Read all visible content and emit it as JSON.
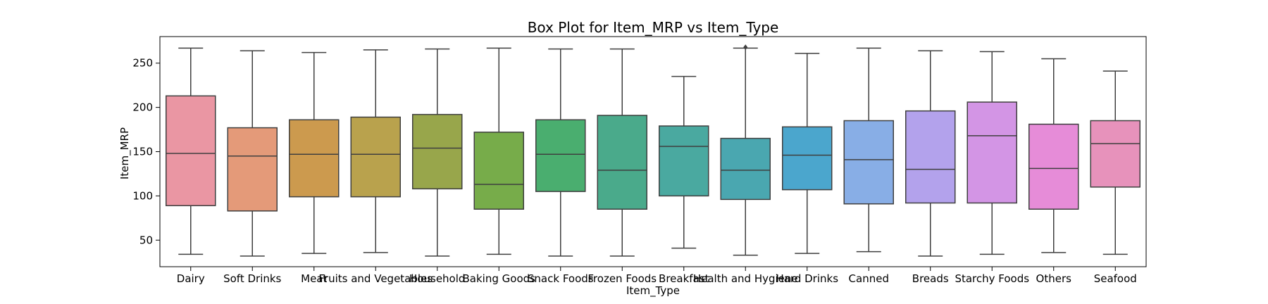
{
  "chart_data": {
    "type": "box",
    "title": "Box Plot for Item_MRP vs Item_Type",
    "xlabel": "Item_Type",
    "ylabel": "Item_MRP",
    "ylim": [
      20,
      280
    ],
    "yticks": [
      50,
      100,
      150,
      200,
      250
    ],
    "grid": false,
    "categories": [
      "Dairy",
      "Soft Drinks",
      "Meat",
      "Fruits and Vegetables",
      "Household",
      "Baking Goods",
      "Snack Foods",
      "Frozen Foods",
      "Breakfast",
      "Health and Hygiene",
      "Hard Drinks",
      "Canned",
      "Breads",
      "Starchy Foods",
      "Others",
      "Seafood"
    ],
    "boxes": [
      {
        "category": "Dairy",
        "whisker_low": 34,
        "q1": 89,
        "median": 148,
        "q3": 213,
        "whisker_high": 267,
        "color": "#ea96a3",
        "outliers": []
      },
      {
        "category": "Soft Drinks",
        "whisker_low": 32,
        "q1": 83,
        "median": 145,
        "q3": 177,
        "whisker_high": 264,
        "color": "#e49a79",
        "outliers": []
      },
      {
        "category": "Meat",
        "whisker_low": 35,
        "q1": 99,
        "median": 147,
        "q3": 186,
        "whisker_high": 262,
        "color": "#cc9a4e",
        "outliers": []
      },
      {
        "category": "Fruits and Vegetables",
        "whisker_low": 36,
        "q1": 99,
        "median": 147,
        "q3": 189,
        "whisker_high": 265,
        "color": "#b9a24d",
        "outliers": []
      },
      {
        "category": "Household",
        "whisker_low": 32,
        "q1": 108,
        "median": 154,
        "q3": 192,
        "whisker_high": 266,
        "color": "#98a64b",
        "outliers": []
      },
      {
        "category": "Baking Goods",
        "whisker_low": 34,
        "q1": 85,
        "median": 113,
        "q3": 172,
        "whisker_high": 267,
        "color": "#77ac4a",
        "outliers": []
      },
      {
        "category": "Snack Foods",
        "whisker_low": 32,
        "q1": 105,
        "median": 147,
        "q3": 186,
        "whisker_high": 266,
        "color": "#4aae6f",
        "outliers": []
      },
      {
        "category": "Frozen Foods",
        "whisker_low": 32,
        "q1": 85,
        "median": 129,
        "q3": 191,
        "whisker_high": 266,
        "color": "#4aaa8b",
        "outliers": []
      },
      {
        "category": "Breakfast",
        "whisker_low": 41,
        "q1": 100,
        "median": 156,
        "q3": 179,
        "whisker_high": 235,
        "color": "#4aa9a0",
        "outliers": []
      },
      {
        "category": "Health and Hygiene",
        "whisker_low": 33,
        "q1": 96,
        "median": 129,
        "q3": 165,
        "whisker_high": 267,
        "color": "#4aa7b0",
        "outliers": [
          268
        ]
      },
      {
        "category": "Hard Drinks",
        "whisker_low": 35,
        "q1": 107,
        "median": 146,
        "q3": 178,
        "whisker_high": 261,
        "color": "#4ba6cd",
        "outliers": []
      },
      {
        "category": "Canned",
        "whisker_low": 37,
        "q1": 91,
        "median": 141,
        "q3": 185,
        "whisker_high": 267,
        "color": "#88aee6",
        "outliers": []
      },
      {
        "category": "Breads",
        "whisker_low": 32,
        "q1": 92,
        "median": 130,
        "q3": 196,
        "whisker_high": 264,
        "color": "#b3a2ec",
        "outliers": []
      },
      {
        "category": "Starchy Foods",
        "whisker_low": 34,
        "q1": 92,
        "median": 168,
        "q3": 206,
        "whisker_high": 263,
        "color": "#d395e5",
        "outliers": []
      },
      {
        "category": "Others",
        "whisker_low": 36,
        "q1": 85,
        "median": 131,
        "q3": 181,
        "whisker_high": 255,
        "color": "#e68cd8",
        "outliers": []
      },
      {
        "category": "Seafood",
        "whisker_low": 34,
        "q1": 110,
        "median": 159,
        "q3": 185,
        "whisker_high": 241,
        "color": "#e792bb",
        "outliers": []
      }
    ]
  }
}
